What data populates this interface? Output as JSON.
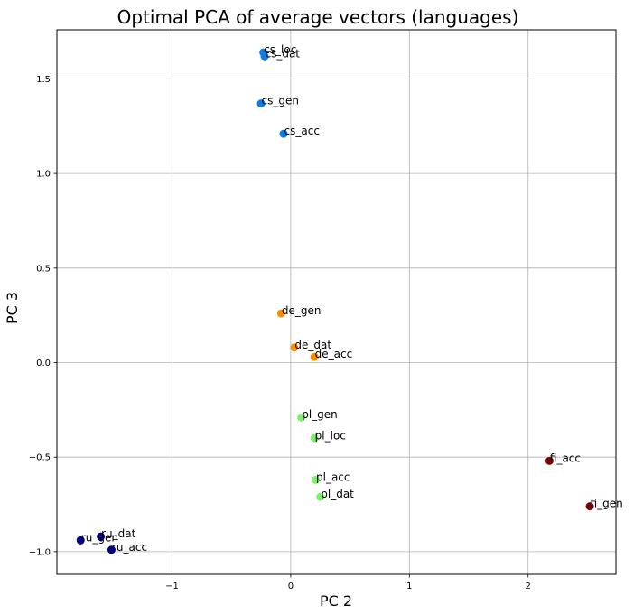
{
  "chart_data": {
    "type": "scatter",
    "title": "Optimal PCA of average vectors (languages)",
    "xlabel": "PC 2",
    "ylabel": "PC 3",
    "xlim": [
      -1.97,
      2.74
    ],
    "ylim": [
      -1.12,
      1.76
    ],
    "xticks": [
      -1,
      0,
      1,
      2
    ],
    "xtick_labels": [
      "−1",
      "0",
      "1",
      "2"
    ],
    "yticks": [
      -1.0,
      -0.5,
      0.0,
      0.5,
      1.0,
      1.5
    ],
    "ytick_labels": [
      "−1.0",
      "−0.5",
      "0.0",
      "0.5",
      "1.0",
      "1.5"
    ],
    "grid": true,
    "series": [
      {
        "color": "#0a7ee8",
        "points": [
          {
            "label": "cs_loc",
            "x": -0.23,
            "y": 1.64
          },
          {
            "label": "cs_dat",
            "x": -0.22,
            "y": 1.62
          },
          {
            "label": "cs_gen",
            "x": -0.25,
            "y": 1.37
          },
          {
            "label": "cs_acc",
            "x": -0.06,
            "y": 1.21
          }
        ]
      },
      {
        "color": "#ff8c00",
        "points": [
          {
            "label": "de_gen",
            "x": -0.08,
            "y": 0.26
          },
          {
            "label": "de_dat",
            "x": 0.03,
            "y": 0.08
          },
          {
            "label": "de_acc",
            "x": 0.2,
            "y": 0.03
          }
        ]
      },
      {
        "color": "#7cf06a",
        "points": [
          {
            "label": "pl_gen",
            "x": 0.09,
            "y": -0.29
          },
          {
            "label": "pl_loc",
            "x": 0.2,
            "y": -0.4
          },
          {
            "label": "pl_acc",
            "x": 0.21,
            "y": -0.62
          },
          {
            "label": "pl_dat",
            "x": 0.25,
            "y": -0.71
          }
        ]
      },
      {
        "color": "#7a0000",
        "points": [
          {
            "label": "fi_acc",
            "x": 2.18,
            "y": -0.52
          },
          {
            "label": "fi_gen",
            "x": 2.52,
            "y": -0.76
          }
        ]
      },
      {
        "color": "#00008b",
        "points": [
          {
            "label": "ru_dat",
            "x": -1.6,
            "y": -0.92
          },
          {
            "label": "ru_gen",
            "x": -1.77,
            "y": -0.94
          },
          {
            "label": "ru_acc",
            "x": -1.51,
            "y": -0.99
          }
        ]
      }
    ]
  }
}
